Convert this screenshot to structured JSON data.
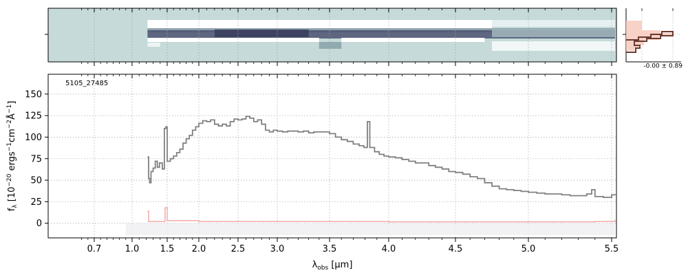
{
  "chart_data": [
    {
      "panel": "2d-spectrum",
      "type": "heatmap",
      "description_colors": {
        "background": "#c5dad9",
        "trace": "#3c3f5e",
        "bright": "#ffffff"
      }
    },
    {
      "panel": "profile",
      "type": "line",
      "annotation": "-0.00 ± 0.89",
      "colors": {
        "profile": "#6b3a2e",
        "fill": "#f7c9bd"
      }
    },
    {
      "panel": "1d-spectrum",
      "type": "line",
      "object_label": "5105_27485",
      "xlabel": "λobs [μm]",
      "ylabel": "fλ [10−20 ergs−1cm−2Å−1]",
      "x_ticks": [
        "0.7",
        "1.0",
        "1.5",
        "2.0",
        "2.5",
        "3.0",
        "3.5",
        "4.0",
        "4.5",
        "5.0",
        "5.5"
      ],
      "x_tick_values": [
        0.7,
        1.0,
        1.5,
        2.0,
        2.5,
        3.0,
        3.5,
        4.0,
        4.5,
        5.0,
        5.5
      ],
      "y_ticks": [
        "0",
        "25",
        "50",
        "75",
        "100",
        "125",
        "150"
      ],
      "y_tick_values": [
        0,
        25,
        50,
        75,
        100,
        125,
        150
      ],
      "xlim": [
        0.56,
        5.53
      ],
      "ylim": [
        -17,
        173
      ],
      "grid": true,
      "series": [
        {
          "color": "#808080",
          "points": [
            [
              1.22,
              77
            ],
            [
              1.235,
              52
            ],
            [
              1.25,
              47
            ],
            [
              1.27,
              60
            ],
            [
              1.3,
              64
            ],
            [
              1.33,
              72
            ],
            [
              1.36,
              65
            ],
            [
              1.39,
              70
            ],
            [
              1.43,
              63
            ],
            [
              1.46,
              110
            ],
            [
              1.48,
              112
            ],
            [
              1.5,
              72
            ],
            [
              1.55,
              75
            ],
            [
              1.6,
              78
            ],
            [
              1.65,
              82
            ],
            [
              1.7,
              86
            ],
            [
              1.75,
              93
            ],
            [
              1.8,
              98
            ],
            [
              1.85,
              102
            ],
            [
              1.9,
              108
            ],
            [
              1.95,
              112
            ],
            [
              2.0,
              116
            ],
            [
              2.05,
              119
            ],
            [
              2.1,
              118
            ],
            [
              2.15,
              120
            ],
            [
              2.2,
              115
            ],
            [
              2.25,
              113
            ],
            [
              2.3,
              115
            ],
            [
              2.35,
              113
            ],
            [
              2.4,
              118
            ],
            [
              2.45,
              121
            ],
            [
              2.5,
              120
            ],
            [
              2.55,
              121
            ],
            [
              2.6,
              124
            ],
            [
              2.65,
              122
            ],
            [
              2.7,
              118
            ],
            [
              2.75,
              120
            ],
            [
              2.8,
              115
            ],
            [
              2.85,
              108
            ],
            [
              2.9,
              106
            ],
            [
              2.95,
              108
            ],
            [
              3.0,
              107
            ],
            [
              3.05,
              106
            ],
            [
              3.1,
              107
            ],
            [
              3.15,
              107
            ],
            [
              3.2,
              106
            ],
            [
              3.25,
              107
            ],
            [
              3.3,
              105
            ],
            [
              3.35,
              106
            ],
            [
              3.4,
              106
            ],
            [
              3.45,
              106
            ],
            [
              3.5,
              104
            ],
            [
              3.55,
              100
            ],
            [
              3.6,
              97
            ],
            [
              3.65,
              95
            ],
            [
              3.7,
              92
            ],
            [
              3.75,
              90
            ],
            [
              3.79,
              88
            ],
            [
              3.82,
              118
            ],
            [
              3.84,
              88
            ],
            [
              3.88,
              83
            ],
            [
              3.92,
              80
            ],
            [
              3.96,
              78
            ],
            [
              4.0,
              77
            ],
            [
              4.05,
              76
            ],
            [
              4.1,
              74
            ],
            [
              4.15,
              72
            ],
            [
              4.2,
              70
            ],
            [
              4.25,
              70
            ],
            [
              4.3,
              67
            ],
            [
              4.35,
              65
            ],
            [
              4.4,
              63
            ],
            [
              4.45,
              60
            ],
            [
              4.5,
              59
            ],
            [
              4.55,
              57
            ],
            [
              4.6,
              54
            ],
            [
              4.65,
              52
            ],
            [
              4.7,
              47
            ],
            [
              4.75,
              43
            ],
            [
              4.8,
              40
            ],
            [
              4.85,
              39
            ],
            [
              4.9,
              38
            ],
            [
              4.95,
              37
            ],
            [
              5.0,
              36
            ],
            [
              5.05,
              35
            ],
            [
              5.1,
              34
            ],
            [
              5.15,
              34
            ],
            [
              5.2,
              33
            ],
            [
              5.25,
              32
            ],
            [
              5.3,
              32
            ],
            [
              5.35,
              34
            ],
            [
              5.38,
              39
            ],
            [
              5.4,
              31
            ],
            [
              5.45,
              30
            ],
            [
              5.5,
              33
            ],
            [
              5.52,
              34
            ]
          ]
        },
        {
          "color": "#f3a8a8",
          "points": [
            [
              1.22,
              14
            ],
            [
              1.235,
              2
            ],
            [
              1.3,
              2
            ],
            [
              1.4,
              2
            ],
            [
              1.46,
              2
            ],
            [
              1.47,
              18
            ],
            [
              1.49,
              18
            ],
            [
              1.5,
              3
            ],
            [
              2.0,
              2
            ],
            [
              2.5,
              2
            ],
            [
              3.0,
              2
            ],
            [
              3.5,
              2
            ],
            [
              4.0,
              1.5
            ],
            [
              4.5,
              1.5
            ],
            [
              5.0,
              1.5
            ],
            [
              5.4,
              2
            ],
            [
              5.52,
              4
            ]
          ]
        }
      ]
    }
  ]
}
